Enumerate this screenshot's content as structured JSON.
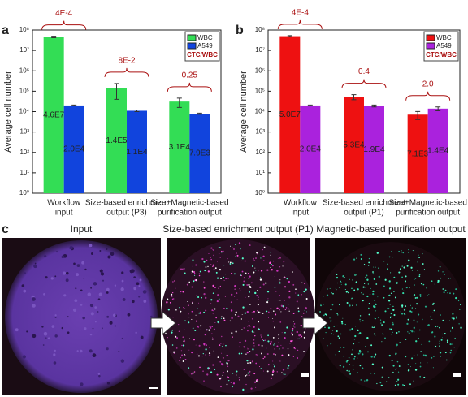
{
  "chart_data": [
    {
      "type": "bar",
      "panel": "a",
      "y_label": "Average cell number",
      "log_scale": true,
      "categories": [
        [
          "Workflow",
          "input"
        ],
        [
          "Size-based enrichment",
          "output (P3)"
        ],
        [
          "Size+Magnetic-based",
          "purification output"
        ]
      ],
      "series": [
        {
          "name": "WBC",
          "color": "#33dd55",
          "values": [
            46000000,
            140000,
            31000
          ],
          "value_labels": [
            "4.6E7",
            "1.4E5",
            "3.1E4"
          ],
          "errors": [
            4000000,
            100000,
            15000
          ]
        },
        {
          "name": "A549",
          "color": "#1144dd",
          "values": [
            20000,
            11000,
            7900
          ],
          "value_labels": [
            "2.0E4",
            "1.1E4",
            "7.9E3"
          ],
          "errors": [
            1000,
            1000,
            500
          ]
        }
      ],
      "annotations": [
        "4E-4",
        "8E-2",
        "0.25"
      ],
      "legend_note": "CTC/WBC",
      "annotation_color": "#aa1111",
      "ylim": [
        1,
        100000000
      ],
      "yticks": [
        {
          "value": 1,
          "label": "10⁰"
        },
        {
          "value": 10,
          "label": "10¹"
        },
        {
          "value": 100,
          "label": "10²"
        },
        {
          "value": 1000,
          "label": "10³"
        },
        {
          "value": 10000,
          "label": "10⁴"
        },
        {
          "value": 100000,
          "label": "10⁵"
        },
        {
          "value": 1000000,
          "label": "10⁶"
        },
        {
          "value": 10000000,
          "label": "10⁷"
        },
        {
          "value": 100000000,
          "label": "10⁸"
        }
      ],
      "legend": "upper right"
    },
    {
      "type": "bar",
      "panel": "b",
      "y_label": "Average cell number",
      "log_scale": true,
      "categories": [
        [
          "Workflow",
          "input"
        ],
        [
          "Size-based enrichment",
          "output (P1)"
        ],
        [
          "Size+Magnetic-based",
          "purification output"
        ]
      ],
      "series": [
        {
          "name": "WBC",
          "color": "#ee1111",
          "values": [
            50000000,
            53000,
            7100
          ],
          "value_labels": [
            "5.0E7",
            "5.3E4",
            "7.1E3"
          ],
          "errors": [
            3000000,
            15000,
            3000
          ]
        },
        {
          "name": "A549",
          "color": "#aa22dd",
          "values": [
            20000,
            19000,
            14000
          ],
          "value_labels": [
            "2.0E4",
            "1.9E4",
            "1.4E4"
          ],
          "errors": [
            1000,
            2000,
            3000
          ]
        }
      ],
      "annotations": [
        "4E-4",
        "0.4",
        "2.0"
      ],
      "legend_note": "CTC/WBC",
      "annotation_color": "#aa1111",
      "ylim": [
        1,
        100000000
      ],
      "yticks": [
        {
          "value": 1,
          "label": "10⁰"
        },
        {
          "value": 10,
          "label": "10¹"
        },
        {
          "value": 100,
          "label": "10²"
        },
        {
          "value": 1000,
          "label": "10³"
        },
        {
          "value": 10000,
          "label": "10⁴"
        },
        {
          "value": 100000,
          "label": "10⁵"
        },
        {
          "value": 1000000,
          "label": "10⁶"
        },
        {
          "value": 10000000,
          "label": "10⁷"
        },
        {
          "value": 100000000,
          "label": "10⁸"
        }
      ],
      "legend": "upper right"
    }
  ],
  "panel_c": {
    "label": "c",
    "titles": [
      "Input",
      "Size-based enrichment output (P1)",
      "Magnetic-based purification output"
    ]
  }
}
